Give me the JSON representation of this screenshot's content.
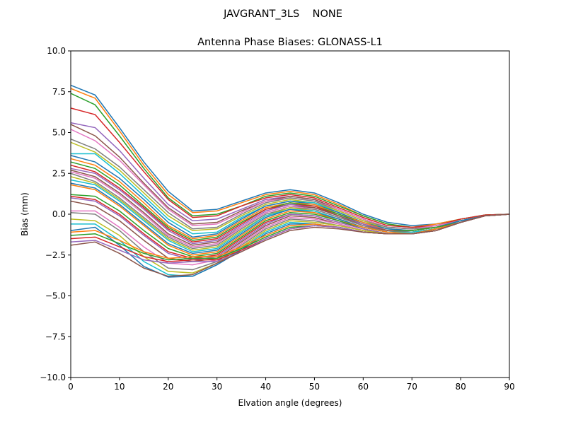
{
  "figure": {
    "suptitle": "JAVGRANT_3LS    NONE"
  },
  "chart_data": {
    "type": "line",
    "title": "Antenna Phase Biases: GLONASS-L1",
    "xlabel": "Elvation angle (degrees)",
    "ylabel": "Bias (mm)",
    "xlim": [
      0,
      90
    ],
    "ylim": [
      -10,
      10
    ],
    "xticks": [
      0,
      10,
      20,
      30,
      40,
      50,
      60,
      70,
      80,
      90
    ],
    "xtick_labels": [
      "0",
      "10",
      "20",
      "30",
      "40",
      "50",
      "60",
      "70",
      "80",
      "90"
    ],
    "yticks": [
      10,
      7.5,
      5,
      2.5,
      0,
      -2.5,
      -5,
      -7.5,
      -10
    ],
    "ytick_labels": [
      "10.0",
      "7.5",
      "5.0",
      "2.5",
      "0.0",
      "−2.5",
      "−5.0",
      "−7.5",
      "−10.0"
    ],
    "grid": false,
    "legend": "none",
    "colors": [
      "#1f77b4",
      "#ff7f0e",
      "#2ca02c",
      "#d62728",
      "#9467bd",
      "#8c564b",
      "#e377c2",
      "#7f7f7f",
      "#bcbd22",
      "#17becf"
    ],
    "x": [
      0,
      5,
      10,
      15,
      20,
      25,
      30,
      35,
      40,
      45,
      50,
      55,
      60,
      65,
      70,
      75,
      80,
      85,
      90
    ],
    "series": [
      {
        "values": [
          7.9,
          7.3,
          5.3,
          3.2,
          1.4,
          0.2,
          0.3,
          0.8,
          1.3,
          1.5,
          1.3,
          0.7,
          0.0,
          -0.5,
          -0.7,
          -0.6,
          -0.3,
          -0.05,
          0.0
        ]
      },
      {
        "values": [
          7.7,
          7.1,
          5.1,
          3.0,
          1.2,
          0.1,
          0.2,
          0.7,
          1.2,
          1.4,
          1.2,
          0.6,
          -0.1,
          -0.6,
          -0.8,
          -0.6,
          -0.3,
          -0.05,
          0.0
        ]
      },
      {
        "values": [
          7.4,
          6.7,
          4.8,
          2.8,
          1.0,
          -0.1,
          0.0,
          0.5,
          1.1,
          1.3,
          1.1,
          0.5,
          -0.1,
          -0.6,
          -0.8,
          -0.7,
          -0.3,
          -0.05,
          0.0
        ]
      },
      {
        "values": [
          6.5,
          6.1,
          4.4,
          2.6,
          0.9,
          -0.2,
          -0.1,
          0.5,
          1.0,
          1.2,
          1.0,
          0.4,
          -0.2,
          -0.7,
          -0.8,
          -0.7,
          -0.3,
          -0.05,
          0.0
        ]
      },
      {
        "values": [
          5.6,
          5.3,
          3.9,
          2.2,
          0.6,
          -0.4,
          -0.3,
          0.3,
          0.9,
          1.1,
          0.9,
          0.3,
          -0.3,
          -0.8,
          -0.9,
          -0.7,
          -0.4,
          -0.1,
          0.0
        ]
      },
      {
        "values": [
          5.5,
          4.8,
          3.5,
          1.9,
          0.4,
          -0.6,
          -0.5,
          0.2,
          0.8,
          1.1,
          0.9,
          0.3,
          -0.3,
          -0.8,
          -0.9,
          -0.7,
          -0.4,
          -0.1,
          0.0
        ]
      },
      {
        "values": [
          5.2,
          4.5,
          3.3,
          1.8,
          0.3,
          -0.7,
          -0.6,
          0.1,
          0.8,
          1.0,
          0.8,
          0.3,
          -0.3,
          -0.8,
          -0.9,
          -0.7,
          -0.4,
          -0.1,
          0.0
        ]
      },
      {
        "values": [
          4.6,
          4.0,
          2.9,
          1.5,
          0.1,
          -0.9,
          -0.8,
          0.0,
          0.7,
          1.0,
          0.8,
          0.2,
          -0.4,
          -0.8,
          -0.9,
          -0.8,
          -0.4,
          -0.1,
          0.0
        ]
      },
      {
        "values": [
          4.4,
          3.8,
          2.7,
          1.3,
          -0.1,
          -1.0,
          -0.9,
          -0.1,
          0.6,
          0.9,
          0.7,
          0.2,
          -0.4,
          -0.9,
          -1.0,
          -0.8,
          -0.4,
          -0.1,
          0.0
        ]
      },
      {
        "values": [
          3.7,
          3.7,
          2.5,
          1.1,
          -0.3,
          -1.2,
          -1.1,
          -0.2,
          0.5,
          0.8,
          0.7,
          0.1,
          -0.5,
          -0.9,
          -1.0,
          -0.8,
          -0.4,
          -0.1,
          0.0
        ]
      },
      {
        "values": [
          3.6,
          3.2,
          2.2,
          0.9,
          -0.5,
          -1.4,
          -1.2,
          -0.3,
          0.5,
          0.8,
          0.6,
          0.1,
          -0.5,
          -0.9,
          -1.0,
          -0.8,
          -0.4,
          -0.1,
          0.0
        ]
      },
      {
        "values": [
          3.4,
          3.0,
          2.0,
          0.7,
          -0.7,
          -1.5,
          -1.3,
          -0.4,
          0.4,
          0.7,
          0.6,
          0.0,
          -0.5,
          -1.0,
          -1.0,
          -0.8,
          -0.5,
          -0.1,
          0.0
        ]
      },
      {
        "values": [
          3.2,
          2.8,
          1.8,
          0.5,
          -0.8,
          -1.6,
          -1.4,
          -0.5,
          0.3,
          0.7,
          0.5,
          0.0,
          -0.6,
          -1.0,
          -1.0,
          -0.8,
          -0.5,
          -0.1,
          0.0
        ]
      },
      {
        "values": [
          3.0,
          2.6,
          1.6,
          0.4,
          -0.9,
          -1.7,
          -1.5,
          -0.6,
          0.3,
          0.6,
          0.5,
          -0.1,
          -0.6,
          -1.0,
          -1.1,
          -0.9,
          -0.5,
          -0.1,
          0.0
        ]
      },
      {
        "values": [
          2.8,
          2.5,
          1.5,
          0.3,
          -1.0,
          -1.8,
          -1.6,
          -0.7,
          0.2,
          0.6,
          0.4,
          -0.1,
          -0.6,
          -1.0,
          -1.1,
          -0.9,
          -0.5,
          -0.1,
          0.0
        ]
      },
      {
        "values": [
          2.7,
          2.3,
          1.3,
          0.1,
          -1.2,
          -1.9,
          -1.7,
          -0.8,
          0.1,
          0.5,
          0.4,
          -0.1,
          -0.7,
          -1.0,
          -1.1,
          -0.9,
          -0.5,
          -0.1,
          0.0
        ]
      },
      {
        "values": [
          2.6,
          2.2,
          1.2,
          0.0,
          -1.3,
          -2.0,
          -1.8,
          -0.8,
          0.1,
          0.5,
          0.3,
          -0.2,
          -0.7,
          -1.1,
          -1.1,
          -0.9,
          -0.5,
          -0.1,
          0.0
        ]
      },
      {
        "values": [
          2.5,
          2.0,
          1.0,
          -0.2,
          -1.4,
          -2.1,
          -1.9,
          -0.9,
          0.0,
          0.4,
          0.3,
          -0.2,
          -0.7,
          -1.1,
          -1.1,
          -0.9,
          -0.5,
          -0.1,
          0.0
        ]
      },
      {
        "values": [
          2.3,
          1.9,
          0.9,
          -0.3,
          -1.5,
          -2.2,
          -2.0,
          -1.0,
          -0.1,
          0.4,
          0.2,
          -0.3,
          -0.8,
          -1.1,
          -1.1,
          -0.9,
          -0.5,
          -0.1,
          0.0
        ]
      },
      {
        "values": [
          2.1,
          1.8,
          0.8,
          -0.4,
          -1.6,
          -2.3,
          -2.1,
          -1.1,
          -0.1,
          0.3,
          0.2,
          -0.3,
          -0.8,
          -1.1,
          -1.1,
          -0.9,
          -0.5,
          -0.1,
          0.0
        ]
      },
      {
        "values": [
          1.9,
          1.6,
          0.6,
          -0.6,
          -1.8,
          -2.4,
          -2.2,
          -1.2,
          -0.2,
          0.3,
          0.1,
          -0.3,
          -0.8,
          -1.1,
          -1.2,
          -0.9,
          -0.5,
          -0.1,
          0.0
        ]
      },
      {
        "values": [
          1.8,
          1.5,
          0.5,
          -0.7,
          -1.9,
          -2.5,
          -2.3,
          -1.3,
          -0.3,
          0.2,
          0.1,
          -0.4,
          -0.8,
          -1.1,
          -1.2,
          -0.9,
          -0.5,
          -0.1,
          0.0
        ]
      },
      {
        "values": [
          1.2,
          1.1,
          0.2,
          -1.0,
          -2.1,
          -2.6,
          -2.4,
          -1.4,
          -0.4,
          0.1,
          0.0,
          -0.4,
          -0.9,
          -1.2,
          -1.2,
          -1.0,
          -0.5,
          -0.1,
          0.0
        ]
      },
      {
        "values": [
          1.1,
          0.9,
          0.0,
          -1.2,
          -2.3,
          -2.7,
          -2.5,
          -1.5,
          -0.5,
          0.0,
          -0.1,
          -0.5,
          -0.9,
          -1.2,
          -1.2,
          -1.0,
          -0.5,
          -0.1,
          0.0
        ]
      },
      {
        "values": [
          1.0,
          0.8,
          -0.1,
          -1.3,
          -2.4,
          -2.8,
          -2.6,
          -1.6,
          -0.6,
          0.0,
          -0.1,
          -0.5,
          -0.9,
          -1.2,
          -1.2,
          -1.0,
          -0.5,
          -0.1,
          0.0
        ]
      },
      {
        "values": [
          0.8,
          0.5,
          -0.4,
          -1.6,
          -2.7,
          -2.9,
          -2.7,
          -1.7,
          -0.7,
          -0.1,
          -0.2,
          -0.6,
          -1.0,
          -1.2,
          -1.2,
          -1.0,
          -0.5,
          -0.1,
          0.0
        ]
      },
      {
        "values": [
          0.2,
          0.2,
          -0.8,
          -2.0,
          -3.0,
          -3.1,
          -2.8,
          -1.8,
          -0.8,
          -0.2,
          -0.3,
          -0.6,
          -1.0,
          -1.2,
          -1.2,
          -1.0,
          -0.5,
          -0.1,
          0.0
        ]
      },
      {
        "values": [
          0.1,
          0.0,
          -1.0,
          -2.3,
          -3.3,
          -3.4,
          -2.9,
          -1.9,
          -0.9,
          -0.3,
          -0.4,
          -0.7,
          -1.0,
          -1.2,
          -1.2,
          -1.0,
          -0.5,
          -0.1,
          0.0
        ]
      },
      {
        "values": [
          -0.3,
          -0.4,
          -1.3,
          -2.6,
          -3.5,
          -3.6,
          -3.0,
          -2.0,
          -1.0,
          -0.4,
          -0.5,
          -0.7,
          -1.0,
          -1.2,
          -1.2,
          -1.0,
          -0.5,
          -0.1,
          0.0
        ]
      },
      {
        "values": [
          -0.6,
          -0.6,
          -1.6,
          -2.9,
          -3.7,
          -3.8,
          -3.1,
          -2.1,
          -1.1,
          -0.5,
          -0.6,
          -0.8,
          -1.1,
          -1.2,
          -1.2,
          -1.0,
          -0.5,
          -0.1,
          0.0
        ]
      },
      {
        "values": [
          -1.0,
          -0.8,
          -1.9,
          -3.2,
          -3.85,
          -3.8,
          -3.1,
          -2.2,
          -1.2,
          -0.6,
          -0.6,
          -0.8,
          -1.1,
          -1.2,
          -1.2,
          -1.0,
          -0.5,
          -0.1,
          0.0
        ]
      },
      {
        "values": [
          -1.1,
          -1.0,
          -1.6,
          -2.3,
          -2.7,
          -2.6,
          -2.6,
          -2.0,
          -1.3,
          -0.7,
          -0.6,
          -0.8,
          -1.1,
          -1.2,
          -1.2,
          -1.0,
          -0.5,
          -0.1,
          0.0
        ]
      },
      {
        "values": [
          -1.3,
          -1.2,
          -1.8,
          -2.4,
          -2.8,
          -2.7,
          -2.7,
          -2.1,
          -1.4,
          -0.8,
          -0.7,
          -0.8,
          -1.1,
          -1.2,
          -1.2,
          -1.0,
          -0.5,
          -0.1,
          0.0
        ]
      },
      {
        "values": [
          -1.5,
          -1.4,
          -2.0,
          -2.6,
          -2.9,
          -2.8,
          -2.8,
          -2.2,
          -1.5,
          -0.9,
          -0.7,
          -0.8,
          -1.1,
          -1.2,
          -1.2,
          -1.0,
          -0.5,
          -0.1,
          0.0
        ]
      },
      {
        "values": [
          -1.7,
          -1.6,
          -2.2,
          -2.8,
          -3.0,
          -2.9,
          -2.9,
          -2.3,
          -1.5,
          -0.9,
          -0.7,
          -0.8,
          -1.1,
          -1.2,
          -1.2,
          -1.0,
          -0.5,
          -0.1,
          0.0
        ]
      },
      {
        "values": [
          -1.9,
          -1.7,
          -2.4,
          -3.3,
          -3.8,
          -3.7,
          -3.0,
          -2.3,
          -1.6,
          -1.0,
          -0.8,
          -0.9,
          -1.1,
          -1.2,
          -1.2,
          -1.0,
          -0.5,
          -0.1,
          0.0
        ]
      }
    ]
  }
}
